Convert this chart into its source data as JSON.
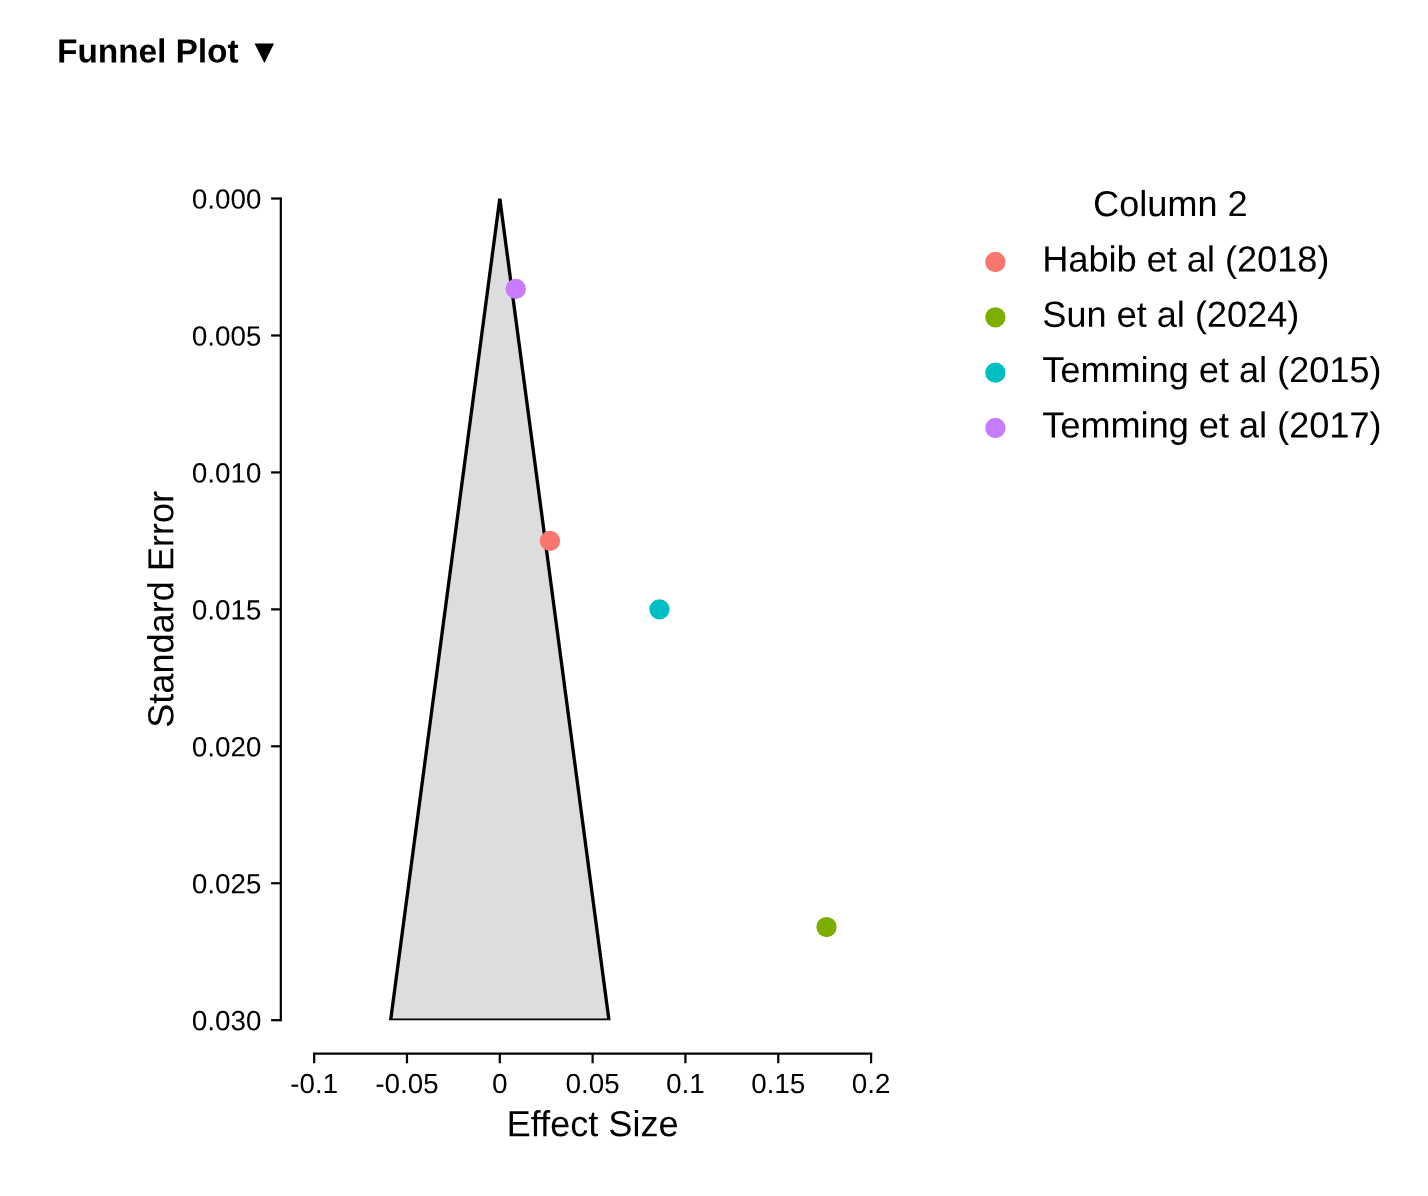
{
  "chart_data": {
    "type": "scatter",
    "title": "Funnel Plot ▼",
    "xlabel": "Effect Size",
    "ylabel": "Standard Error",
    "legend_title": "Column 2",
    "series": [
      {
        "type": "area",
        "marker": "none",
        "color": "#dddddd",
        "x": [
          -0.0588,
          0,
          0.0588
        ],
        "values": [
          0.03,
          0,
          0.03
        ]
      },
      {
        "name": "Habib et al (2018)",
        "color": "#f8766d",
        "x": [
          0.027
        ],
        "values": [
          0.0125
        ]
      },
      {
        "name": "Sun et al (2024)",
        "color": "#7cae00",
        "x": [
          0.176
        ],
        "values": [
          0.0266
        ]
      },
      {
        "name": "Temming et al (2015)",
        "color": "#00bfc4",
        "x": [
          0.086
        ],
        "values": [
          0.015
        ]
      },
      {
        "name": "Temming et al (2017)",
        "color": "#c77cff",
        "x": [
          0.0086
        ],
        "values": [
          0.0033
        ]
      }
    ],
    "xlim": [
      -0.1,
      0.2
    ],
    "xticks": [
      -0.1,
      -0.05,
      0,
      0.05,
      0.1,
      0.15,
      0.2
    ],
    "ylim": [
      0.03,
      0
    ],
    "yticks": [
      {
        "value": 0,
        "label": "0.000"
      },
      {
        "value": 0.005,
        "label": "0.005"
      },
      {
        "value": 0.01,
        "label": "0.010"
      },
      {
        "value": 0.015,
        "label": "0.015"
      },
      {
        "value": 0.02,
        "label": "0.020"
      },
      {
        "value": 0.025,
        "label": "0.025"
      },
      {
        "value": 0.03,
        "label": "0.030"
      }
    ],
    "grid": false,
    "legend": "right",
    "marker": "circle"
  }
}
